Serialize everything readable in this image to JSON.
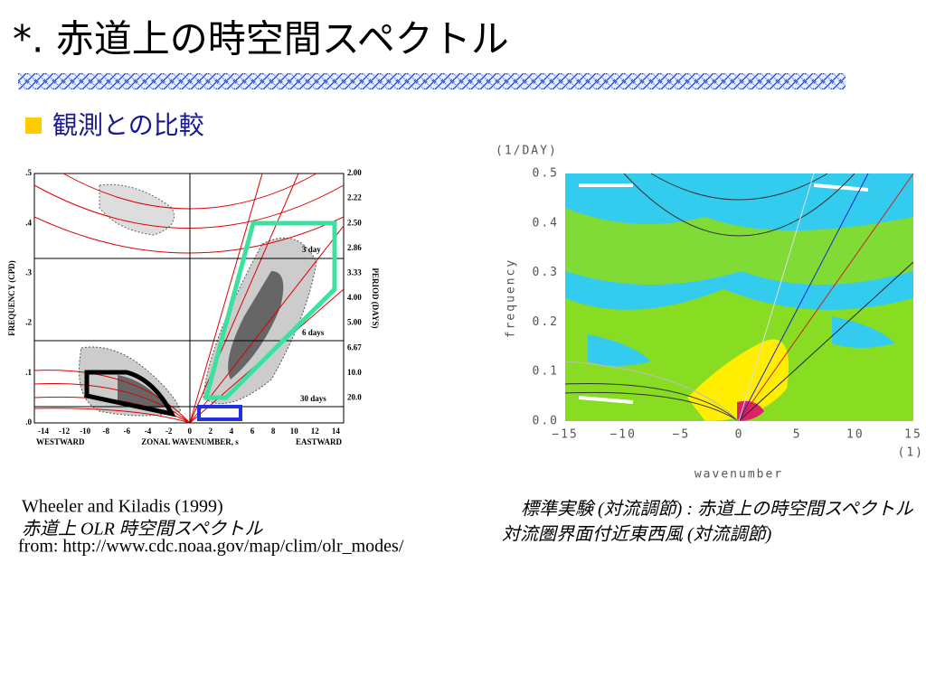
{
  "title": "*. 赤道上の時空間スペクトル",
  "subtitle": "観測との比較",
  "left_figure": {
    "y_label": "FREQUENCY (CPD)",
    "y2_label": "PERIOD (DAYS)",
    "yticks": [
      ".5",
      ".4",
      ".3",
      ".2",
      ".1",
      ".0"
    ],
    "y2ticks": [
      "2.00",
      "2.22",
      "2.50",
      "2.86",
      "3.33",
      "4.00",
      "5.00",
      "6.67",
      "10.0",
      "20.0"
    ],
    "xticks": [
      "-14",
      "-12",
      "-10",
      "-8",
      "-6",
      "-4",
      "-2",
      "0",
      "2",
      "4",
      "6",
      "8",
      "10",
      "12",
      "14"
    ],
    "x_label": "ZONAL WAVENUMBER, s",
    "x_left": "WESTWARD",
    "x_right": "EASTWARD",
    "annotations": [
      "3 day",
      "6 days",
      "30 days"
    ]
  },
  "right_figure": {
    "y_unit": "(1/DAY)",
    "y_label": "frequency",
    "yticks": [
      "0.5",
      "0.4",
      "0.3",
      "0.2",
      "0.1",
      "0.0"
    ],
    "xticks": [
      "−15",
      "−10",
      "−5",
      "0",
      "5",
      "10",
      "15"
    ],
    "x_unit": "(1)",
    "x_label": "wavenumber"
  },
  "captions": {
    "left": [
      "Wheeler and Kiladis (1999)",
      "赤道上 OLR 時空間スペクトル",
      "from: http://www.cdc.noaa.gov/map/clim/olr_modes/"
    ],
    "right": [
      "標準実験 (対流調節) : 赤道上の時空間スペクトル",
      "対流圏界面付近東西風 (対流調節)"
    ]
  }
}
